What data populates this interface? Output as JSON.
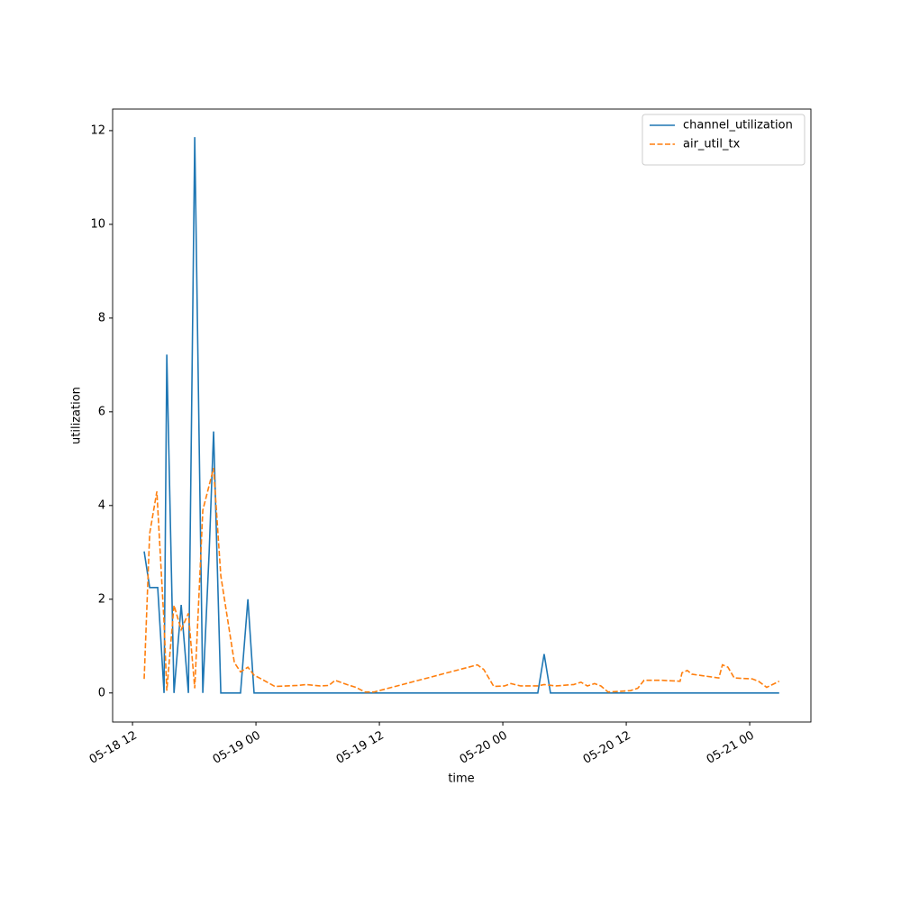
{
  "chart_data": {
    "type": "line",
    "xlabel": "time",
    "ylabel": "utilization",
    "xlim": [
      "05-18 10:04",
      "05-21 05:57"
    ],
    "xticks": [
      {
        "value": "05-18 12:00",
        "label": "05-18 12"
      },
      {
        "value": "05-19 00:00",
        "label": "05-19 00"
      },
      {
        "value": "05-19 12:00",
        "label": "05-19 12"
      },
      {
        "value": "05-20 00:00",
        "label": "05-20 00"
      },
      {
        "value": "05-20 12:00",
        "label": "05-20 12"
      },
      {
        "value": "05-21 00:00",
        "label": "05-21 00"
      }
    ],
    "ylim": [
      -0.62,
      12.46
    ],
    "yticks": [
      0,
      2,
      4,
      6,
      8,
      10,
      12
    ],
    "legend": "upper right",
    "series": [
      {
        "name": "channel_utilization",
        "color": "#1f77b4",
        "dash": "solid",
        "x": [
          "05-18 13:08",
          "05-18 13:40",
          "05-18 14:27",
          "05-18 15:04",
          "05-18 15:20",
          "05-18 16:02",
          "05-18 16:44",
          "05-18 17:26",
          "05-18 18:03",
          "05-18 18:50",
          "05-18 19:27",
          "05-18 19:53",
          "05-18 20:35",
          "05-18 22:30",
          "05-18 23:13",
          "05-18 23:49",
          "05-20 03:24",
          "05-20 04:01",
          "05-20 04:38",
          "05-21 02:52"
        ],
        "values": [
          3.02,
          2.25,
          2.25,
          0,
          7.22,
          0,
          1.88,
          0,
          11.86,
          0,
          3.0,
          5.58,
          0,
          0,
          2.0,
          0,
          0,
          0.83,
          0,
          0
        ]
      },
      {
        "name": "air_util_tx",
        "color": "#ff7f0e",
        "dash": "dashed",
        "x": [
          "05-18 13:08",
          "05-18 13:40",
          "05-18 14:22",
          "05-18 15:04",
          "05-18 15:20",
          "05-18 16:02",
          "05-18 16:44",
          "05-18 17:26",
          "05-18 18:03",
          "05-18 18:50",
          "05-18 19:53",
          "05-18 20:35",
          "05-18 21:54",
          "05-18 22:30",
          "05-18 23:13",
          "05-18 23:49",
          "05-19 00:31",
          "05-19 01:50",
          "05-19 04:01",
          "05-19 04:54",
          "05-19 06:13",
          "05-19 07:05",
          "05-19 07:42",
          "05-19 08:50",
          "05-19 09:43",
          "05-19 10:36",
          "05-19 11:28",
          "05-19 21:32",
          "05-19 22:09",
          "05-19 23:07",
          "05-20 00:10",
          "05-20 00:47",
          "05-20 01:44",
          "05-20 03:24",
          "05-20 04:01",
          "05-20 05:09",
          "05-20 06:54",
          "05-20 07:36",
          "05-20 08:13",
          "05-20 08:55",
          "05-20 09:32",
          "05-20 10:14",
          "05-20 12:25",
          "05-20 13:07",
          "05-20 13:44",
          "05-20 15:29",
          "05-20 17:14",
          "05-20 17:25",
          "05-20 17:56",
          "05-20 18:23",
          "05-20 21:00",
          "05-20 21:21",
          "05-20 21:53",
          "05-20 22:30",
          "05-21 00:15",
          "05-21 00:51",
          "05-21 01:39",
          "05-21 02:52"
        ],
        "values": [
          0.3,
          3.4,
          4.3,
          1.5,
          0.05,
          1.87,
          1.35,
          1.7,
          0.1,
          3.9,
          4.8,
          2.5,
          0.65,
          0.45,
          0.55,
          0.38,
          0.3,
          0.14,
          0.16,
          0.18,
          0.15,
          0.16,
          0.27,
          0.18,
          0.12,
          0.02,
          0.02,
          0.6,
          0.5,
          0.14,
          0.15,
          0.2,
          0.15,
          0.15,
          0.18,
          0.15,
          0.18,
          0.23,
          0.15,
          0.2,
          0.15,
          0.02,
          0.05,
          0.1,
          0.27,
          0.27,
          0.25,
          0.43,
          0.48,
          0.4,
          0.32,
          0.6,
          0.55,
          0.32,
          0.3,
          0.25,
          0.12,
          0.25
        ]
      }
    ]
  }
}
